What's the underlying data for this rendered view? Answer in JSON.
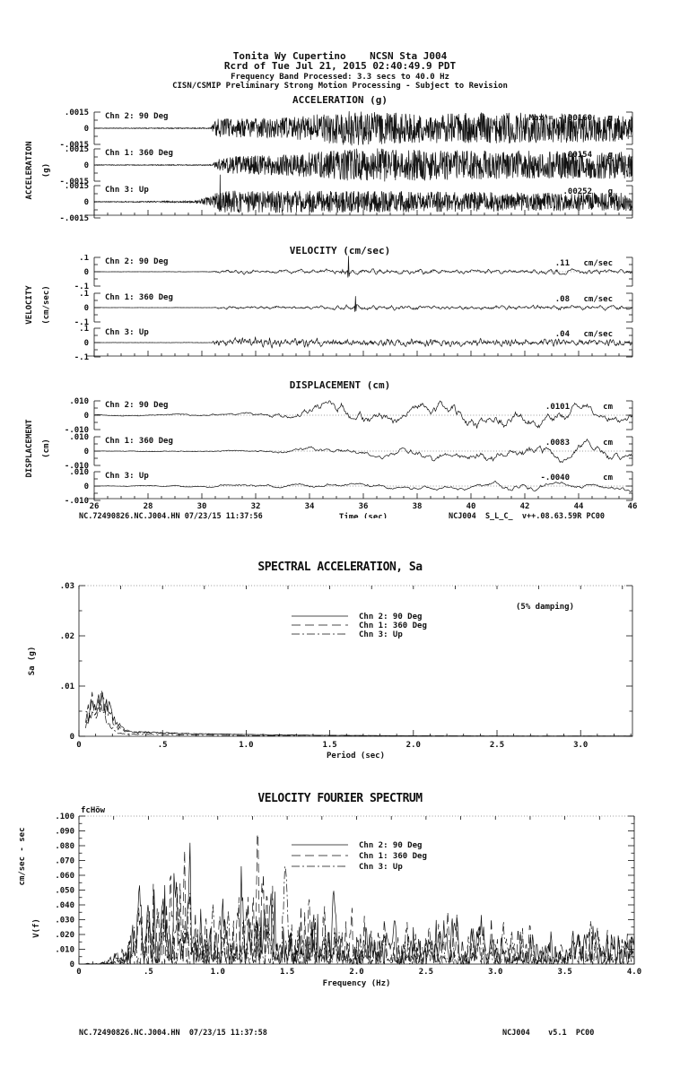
{
  "header": {
    "station_line": "Tonita Wy Cupertino    NCSN Sta J004",
    "record_line": "Rcrd of Tue Jul 21, 2015 02:40:49.9 PDT",
    "band_line": "Frequency Band Processed: 3.3 secs to 40.0 Hz",
    "processing_line": "CISN/CSMIP Preliminary Strong Motion Processing - Subject to Revision"
  },
  "footers": {
    "timeseries_left": "NC.72490826.NC.J004.HN 07/23/15 11:37:56",
    "timeseries_right": "NCJ004  S_L_C_  v++.08.63.59R PC00",
    "page_left": "NC.72490826.NC.J004.HN  07/23/15 11:37:58",
    "page_right": "NCJ004    v5.1  PC00"
  },
  "chart_data": [
    {
      "id": "acceleration",
      "type": "line",
      "kind": "waveform-set",
      "title": "ACCELERATION (g)",
      "ylabels": [
        "ACCELERATION",
        "(g)"
      ],
      "units": "g",
      "max_prefix": "Max = ",
      "x": {
        "label": null,
        "min": 26,
        "max": 46,
        "major": 2,
        "minor": 0.5,
        "tick_labels": null
      },
      "y_tick_labels": [
        ".0015",
        "0",
        "-.0015"
      ],
      "y_scale_value": 0.0015,
      "channels": [
        {
          "label": "Chn 2: 90 Deg",
          "max_label": "-.00160",
          "peak": 0.0016,
          "peak_sign": -1,
          "seed": 11,
          "smooth": 0,
          "n": 1500,
          "spike_at": null,
          "env": [
            [
              26,
              0.02
            ],
            [
              30.3,
              0.03
            ],
            [
              30.55,
              0.55
            ],
            [
              33,
              0.6
            ],
            [
              35.5,
              1.0
            ],
            [
              38,
              0.85
            ],
            [
              42,
              0.9
            ],
            [
              46,
              0.75
            ]
          ]
        },
        {
          "label": "Chn 1: 360 Deg",
          "max_label": ".00154",
          "peak": 0.00154,
          "peak_sign": 1,
          "seed": 23,
          "smooth": 0,
          "n": 1500,
          "spike_at": null,
          "env": [
            [
              26,
              0.02
            ],
            [
              30.4,
              0.03
            ],
            [
              30.65,
              0.5
            ],
            [
              33,
              0.6
            ],
            [
              36,
              1.0
            ],
            [
              40,
              0.85
            ],
            [
              46,
              0.8
            ]
          ]
        },
        {
          "label": "Chn 3: Up",
          "max_label": ".00252",
          "peak": 0.00252,
          "peak_sign": 1,
          "seed": 37,
          "smooth": 0,
          "n": 1600,
          "spike_at": 30.68,
          "env": [
            [
              26,
              0.02
            ],
            [
              29.7,
              0.05
            ],
            [
              30.4,
              0.35
            ],
            [
              30.6,
              0.6
            ],
            [
              31,
              0.62
            ],
            [
              36,
              0.6
            ],
            [
              40,
              0.55
            ],
            [
              46,
              0.5
            ]
          ]
        }
      ]
    },
    {
      "id": "velocity",
      "type": "line",
      "kind": "waveform-set",
      "title": "VELOCITY (cm/sec)",
      "ylabels": [
        "VELOCITY",
        "(cm/sec)"
      ],
      "units": "cm/sec",
      "max_prefix": "",
      "x": {
        "label": null,
        "min": 26,
        "max": 46,
        "major": 2,
        "minor": 0.5,
        "tick_labels": null
      },
      "y_tick_labels": [
        ".1",
        "0",
        "-.1"
      ],
      "y_scale_value": 0.1,
      "channels": [
        {
          "label": "Chn 2: 90 Deg",
          "max_label": ".11",
          "peak": 0.11,
          "peak_sign": 1,
          "seed": 41,
          "smooth": 2,
          "n": 1000,
          "spike_at": 35.45,
          "env": [
            [
              26,
              0.015
            ],
            [
              30.3,
              0.03
            ],
            [
              30.6,
              0.3
            ],
            [
              34,
              0.35
            ],
            [
              35.3,
              0.6
            ],
            [
              35.6,
              0.5
            ],
            [
              37,
              0.45
            ],
            [
              40,
              0.4
            ],
            [
              43,
              0.45
            ],
            [
              46,
              0.35
            ]
          ]
        },
        {
          "label": "Chn 1: 360 Deg",
          "max_label": ".08",
          "peak": 0.08,
          "peak_sign": 1,
          "seed": 53,
          "smooth": 2,
          "n": 1000,
          "spike_at": 35.7,
          "env": [
            [
              26,
              0.015
            ],
            [
              30.4,
              0.03
            ],
            [
              30.7,
              0.35
            ],
            [
              34,
              0.4
            ],
            [
              35.7,
              0.6
            ],
            [
              37,
              0.5
            ],
            [
              40,
              0.45
            ],
            [
              44,
              0.55
            ],
            [
              46,
              0.45
            ]
          ]
        },
        {
          "label": "Chn 3: Up",
          "max_label": ".04",
          "peak": 0.04,
          "peak_sign": 1,
          "seed": 67,
          "smooth": 1,
          "n": 1100,
          "spike_at": null,
          "env": [
            [
              26,
              0.015
            ],
            [
              30.3,
              0.05
            ],
            [
              30.6,
              0.8
            ],
            [
              32,
              1.0
            ],
            [
              35,
              0.8
            ],
            [
              38,
              0.75
            ],
            [
              42,
              0.7
            ],
            [
              46,
              0.6
            ]
          ]
        }
      ]
    },
    {
      "id": "displacement",
      "type": "line",
      "kind": "waveform-set",
      "title": "DISPLACEMENT (cm)",
      "ylabels": [
        "DISPLACEMENT",
        "(cm)"
      ],
      "units": "cm",
      "max_prefix": "",
      "x": {
        "label": "Time (sec)",
        "min": 26,
        "max": 46,
        "major": 2,
        "minor": 0.5,
        "tick_labels": [
          "26",
          "28",
          "30",
          "32",
          "34",
          "36",
          "38",
          "40",
          "42",
          "44",
          "46"
        ]
      },
      "y_tick_labels": [
        ".010",
        "0",
        "-.010"
      ],
      "y_scale_value": 0.01,
      "channels": [
        {
          "label": "Chn 2: 90 Deg",
          "max_label": ".0101",
          "peak": 0.0101,
          "peak_sign": 1,
          "seed": 71,
          "smooth": 14,
          "n": 700,
          "spike_at": null,
          "env": [
            [
              26,
              0.06
            ],
            [
              31,
              0.1
            ],
            [
              33,
              0.35
            ],
            [
              35.5,
              0.8
            ],
            [
              37.5,
              0.6
            ],
            [
              39.5,
              1.0
            ],
            [
              41.5,
              0.85
            ],
            [
              43.5,
              0.7
            ],
            [
              46,
              0.5
            ]
          ]
        },
        {
          "label": "Chn 1: 360 Deg",
          "max_label": ".0083",
          "peak": 0.0083,
          "peak_sign": 1,
          "seed": 83,
          "smooth": 14,
          "n": 700,
          "spike_at": null,
          "env": [
            [
              26,
              0.06
            ],
            [
              31,
              0.12
            ],
            [
              34,
              0.4
            ],
            [
              36,
              0.5
            ],
            [
              39.5,
              0.85
            ],
            [
              43.8,
              1.0
            ],
            [
              45.2,
              0.9
            ],
            [
              46,
              0.6
            ]
          ]
        },
        {
          "label": "Chn 3: Up",
          "max_label": "-.0040",
          "peak": 0.004,
          "peak_sign": -1,
          "seed": 97,
          "smooth": 8,
          "n": 700,
          "spike_at": null,
          "env": [
            [
              26,
              0.06
            ],
            [
              30.5,
              0.3
            ],
            [
              33,
              0.45
            ],
            [
              36,
              0.55
            ],
            [
              40,
              0.6
            ],
            [
              41.5,
              1.0
            ],
            [
              44,
              0.6
            ],
            [
              46,
              0.85
            ]
          ]
        }
      ]
    },
    {
      "id": "sa",
      "type": "line",
      "kind": "spectrum",
      "title": "SPECTRAL ACCELERATION, Sa",
      "annotation": "(5% damping)",
      "xlabel": "Period (sec)",
      "ylabels": [
        "Sa (g)"
      ],
      "x_min": 0,
      "x_max": 3.31,
      "x_major": 0.5,
      "x_minor": 0.1,
      "x_top": 0.25,
      "x_tick_labels": [
        "0",
        ".5",
        "1.0",
        "1.5",
        "2.0",
        "2.5",
        "3.0"
      ],
      "y_max": 0.03,
      "y_major": 0.01,
      "y_minor": 0.005,
      "y_tick_labels": [
        "0",
        ".01",
        ".02",
        ".03"
      ],
      "legend": [
        {
          "label": "Chn 2: 90 Deg",
          "style": "solid"
        },
        {
          "label": "Chn 1: 360 Deg",
          "style": "dash"
        },
        {
          "label": "Chn 3: Up",
          "style": "dashdot"
        }
      ],
      "series": [
        {
          "label": "Chn 2: 90 Deg",
          "style": "solid",
          "shape": "sa",
          "seed": 111,
          "peak": 0.0062,
          "hump_center": 0.13,
          "hump_width": 0.09,
          "tail": 0.0013,
          "tail_decay": 1.3,
          "jitter": 0.45
        },
        {
          "label": "Chn 1: 360 Deg",
          "style": "dash",
          "shape": "sa",
          "seed": 222,
          "peak": 0.0068,
          "hump_center": 0.12,
          "hump_width": 0.08,
          "tail": 0.0012,
          "tail_decay": 1.2,
          "jitter": 0.5
        },
        {
          "label": "Chn 3: Up",
          "style": "dashdot",
          "shape": "sa",
          "seed": 333,
          "peak": 0.0052,
          "hump_center": 0.11,
          "hump_width": 0.07,
          "tail": 0.0007,
          "tail_decay": 1.6,
          "jitter": 0.5
        }
      ]
    },
    {
      "id": "fourier",
      "type": "line",
      "kind": "spectrum",
      "title": "VELOCITY FOURIER SPECTRUM",
      "note": "fcHöw",
      "xlabel": "Frequency (Hz)",
      "ylabels": [
        "cm/sec - sec",
        "V(f)"
      ],
      "x_min": 0,
      "x_max": 4.0,
      "x_major": 0.5,
      "x_minor": 0.1,
      "x_top": 0.25,
      "x_tick_labels": [
        "0",
        ".5",
        "1.0",
        "1.5",
        "2.0",
        "2.5",
        "3.0",
        "3.5",
        "4.0"
      ],
      "y_max": 0.1,
      "y_major": 0.01,
      "y_minor": 0.005,
      "y_tick_labels": [
        "0",
        ".010",
        ".020",
        ".030",
        ".040",
        ".050",
        ".060",
        ".070",
        ".080",
        ".090",
        ".100"
      ],
      "env": [
        [
          0,
          0
        ],
        [
          0.12,
          0.01
        ],
        [
          0.2,
          0.04
        ],
        [
          0.3,
          0.18
        ],
        [
          0.4,
          0.55
        ],
        [
          0.5,
          0.95
        ],
        [
          0.65,
          1.0
        ],
        [
          0.9,
          0.9
        ],
        [
          1.3,
          0.95
        ],
        [
          1.6,
          0.85
        ],
        [
          1.9,
          0.8
        ],
        [
          2.2,
          0.55
        ],
        [
          2.6,
          0.5
        ],
        [
          3.0,
          0.45
        ],
        [
          3.5,
          0.4
        ],
        [
          4,
          0.45
        ]
      ],
      "legend": [
        {
          "label": "Chn 2: 90 Deg",
          "style": "solid"
        },
        {
          "label": "Chn 1: 360 Deg",
          "style": "dash"
        },
        {
          "label": "Chn 3: Up",
          "style": "dashdot"
        }
      ],
      "series": [
        {
          "label": "Chn 2: 90 Deg",
          "style": "solid",
          "shape": "fourier",
          "seed": 7,
          "peak": 0.082
        },
        {
          "label": "Chn 1: 360 Deg",
          "style": "dash",
          "shape": "fourier",
          "seed": 13,
          "peak": 0.088
        },
        {
          "label": "Chn 3: Up",
          "style": "dashdot",
          "shape": "fourier",
          "seed": 19,
          "peak": 0.066
        }
      ]
    }
  ]
}
